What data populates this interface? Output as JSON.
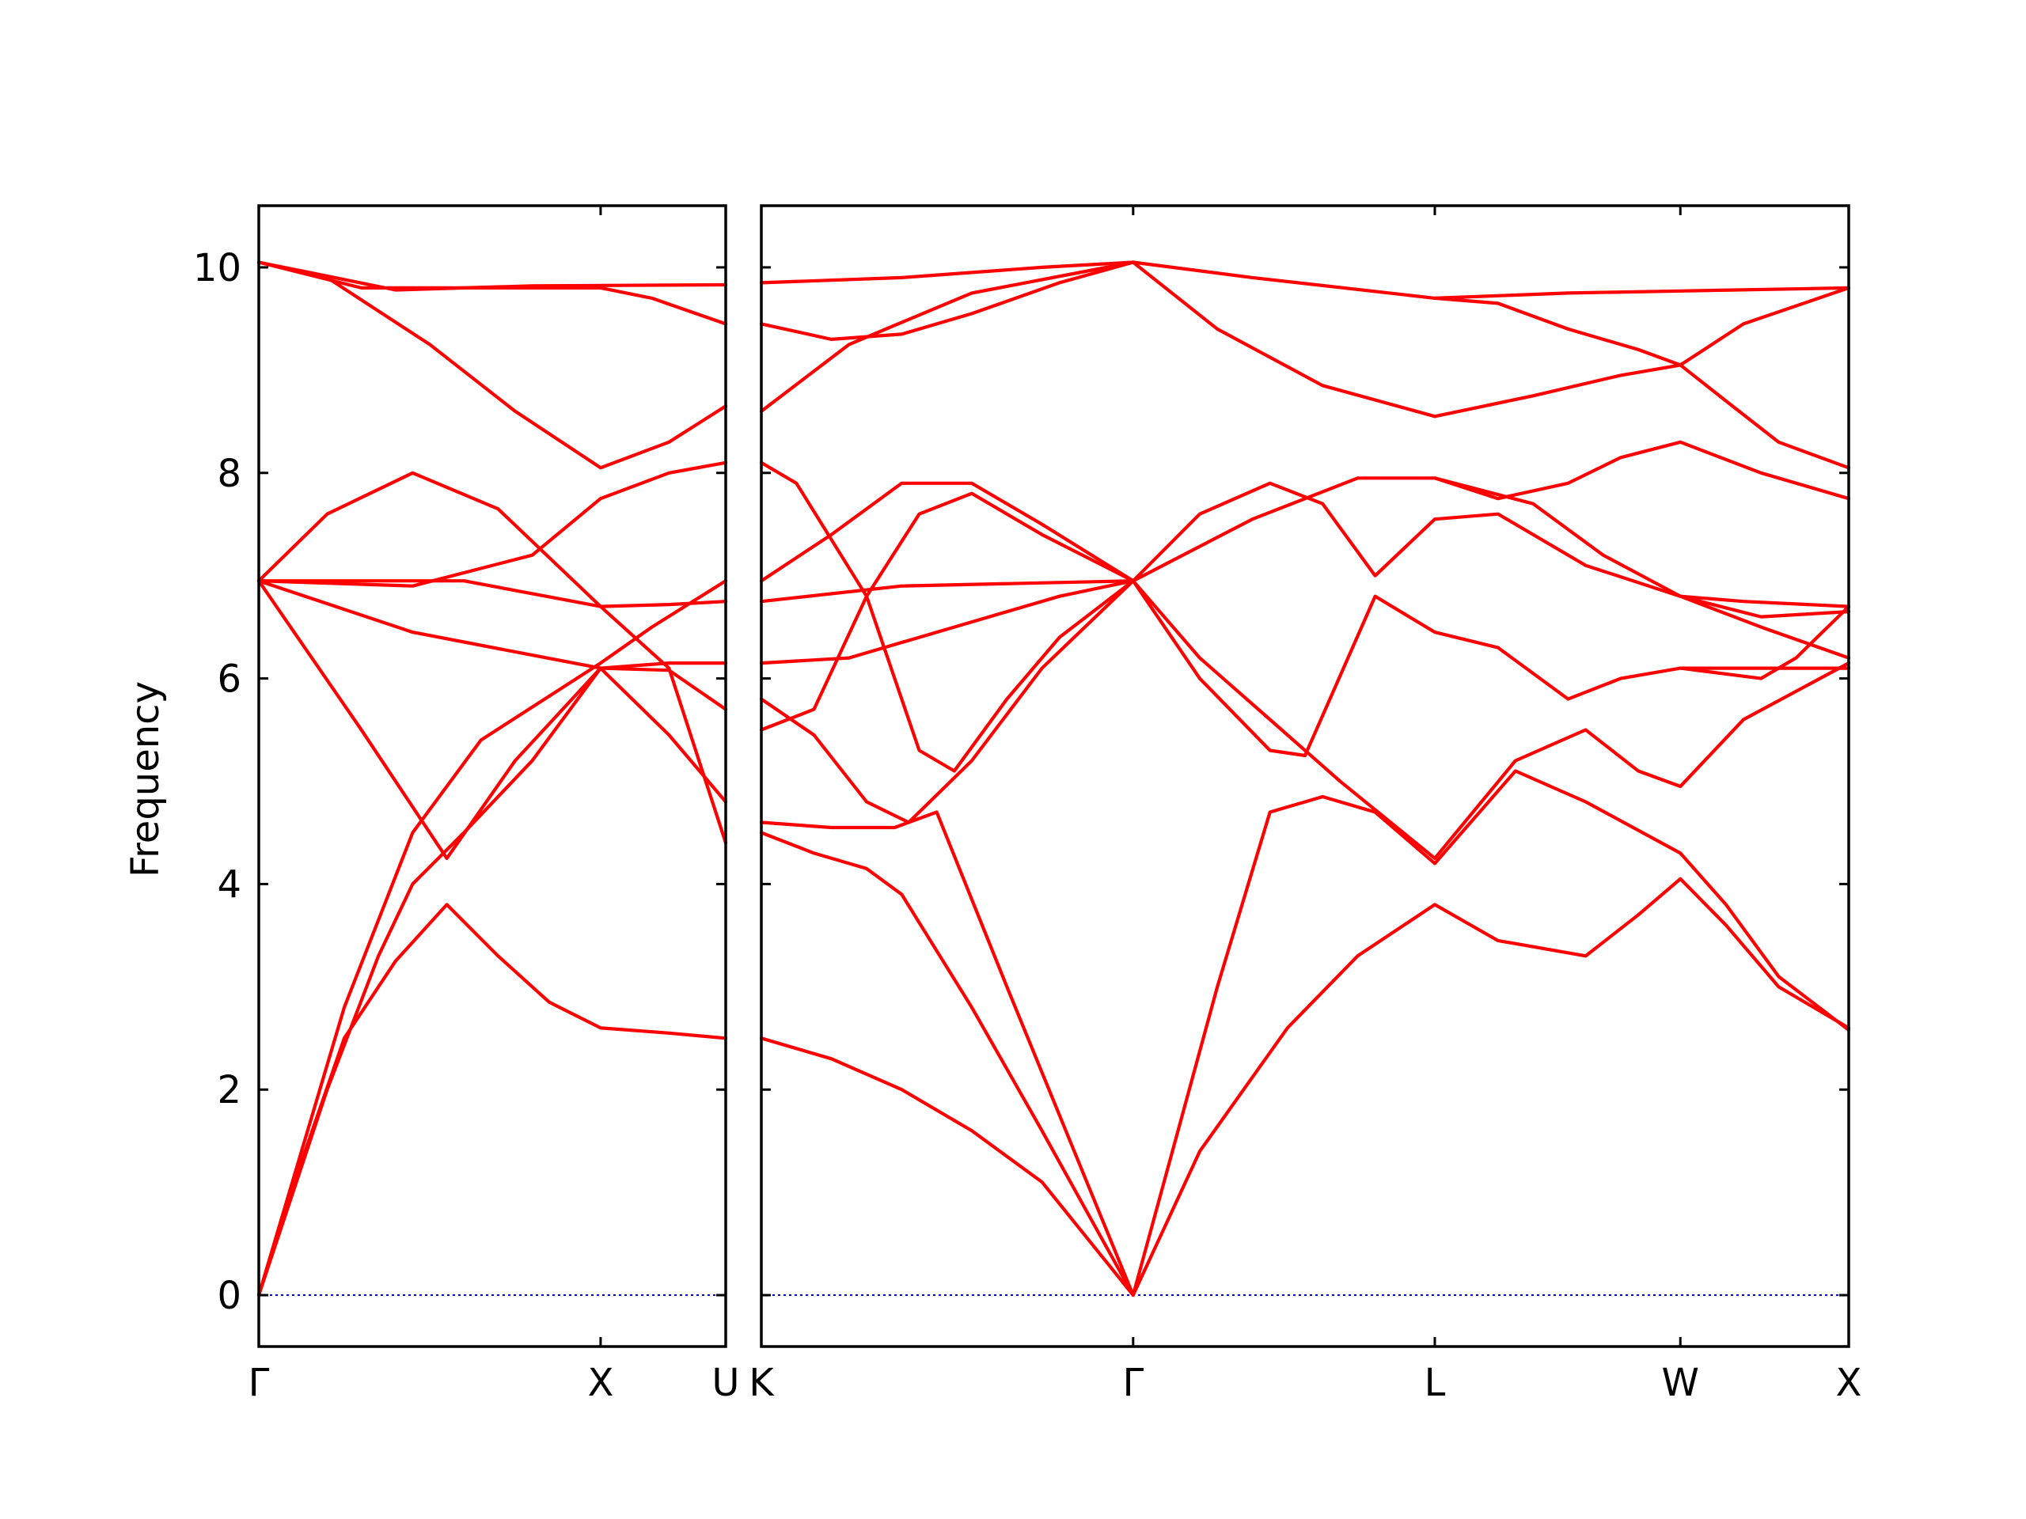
{
  "chart_data": {
    "type": "line",
    "ylabel": "Frequency",
    "ylim": [
      -0.5,
      10.6
    ],
    "yticks": [
      0,
      2,
      4,
      6,
      8,
      10
    ],
    "colors": {
      "bands": "#ff0000",
      "zero_line": "#0000cc",
      "frame": "#000000"
    },
    "grid": false,
    "panels": [
      {
        "xlim": [
          0,
          1.366
        ],
        "xticks": [
          {
            "x": 0,
            "label": "Γ"
          },
          {
            "x": 1.0,
            "label": "X"
          },
          {
            "x": 1.366,
            "label": "U"
          }
        ],
        "bands": [
          [
            [
              0,
              0
            ],
            [
              0.12,
              1.25
            ],
            [
              0.25,
              2.5
            ],
            [
              0.4,
              3.25
            ],
            [
              0.55,
              3.8
            ],
            [
              0.7,
              3.3
            ],
            [
              0.85,
              2.85
            ],
            [
              1.0,
              2.6
            ],
            [
              1.2,
              2.55
            ],
            [
              1.366,
              2.5
            ]
          ],
          [
            [
              0,
              0
            ],
            [
              0.2,
              2.0
            ],
            [
              0.35,
              3.3
            ],
            [
              0.45,
              4.0
            ],
            [
              0.6,
              4.5
            ],
            [
              0.8,
              5.2
            ],
            [
              1.0,
              6.1
            ],
            [
              1.2,
              6.08
            ],
            [
              1.366,
              5.7
            ]
          ],
          [
            [
              0,
              6.95
            ],
            [
              0.3,
              5.5
            ],
            [
              0.55,
              4.25
            ],
            [
              0.75,
              5.2
            ],
            [
              1.0,
              6.1
            ],
            [
              1.2,
              6.15
            ],
            [
              1.366,
              6.15
            ]
          ],
          [
            [
              0,
              0
            ],
            [
              0.25,
              2.8
            ],
            [
              0.45,
              4.5
            ],
            [
              0.65,
              5.4
            ],
            [
              1.0,
              6.15
            ],
            [
              1.15,
              6.5
            ],
            [
              1.366,
              6.95
            ]
          ],
          [
            [
              0,
              6.95
            ],
            [
              0.45,
              6.45
            ],
            [
              1.0,
              6.1
            ],
            [
              1.2,
              5.45
            ],
            [
              1.366,
              4.8
            ]
          ],
          [
            [
              0,
              6.95
            ],
            [
              0.45,
              6.9
            ],
            [
              0.8,
              7.2
            ],
            [
              1.0,
              7.75
            ],
            [
              1.2,
              8.0
            ],
            [
              1.366,
              8.1
            ]
          ],
          [
            [
              0,
              6.95
            ],
            [
              0.2,
              7.6
            ],
            [
              0.45,
              8.0
            ],
            [
              0.7,
              7.65
            ],
            [
              1.0,
              6.7
            ],
            [
              1.2,
              6.1
            ],
            [
              1.366,
              4.4
            ]
          ],
          [
            [
              0,
              6.95
            ],
            [
              0.6,
              6.95
            ],
            [
              1.0,
              6.7
            ],
            [
              1.2,
              6.72
            ],
            [
              1.366,
              6.75
            ]
          ],
          [
            [
              0,
              10.05
            ],
            [
              0.2,
              9.9
            ],
            [
              0.5,
              9.25
            ],
            [
              0.75,
              8.6
            ],
            [
              1.0,
              8.05
            ],
            [
              1.2,
              8.3
            ],
            [
              1.366,
              8.65
            ]
          ],
          [
            [
              0,
              10.05
            ],
            [
              0.3,
              9.8
            ],
            [
              0.6,
              9.8
            ],
            [
              1.0,
              9.8
            ],
            [
              1.15,
              9.7
            ],
            [
              1.366,
              9.45
            ]
          ],
          [
            [
              0,
              10.05
            ],
            [
              0.4,
              9.78
            ],
            [
              0.8,
              9.82
            ],
            [
              1.366,
              9.83
            ]
          ]
        ]
      },
      {
        "xlim": [
          0,
          3.1
        ],
        "xticks": [
          {
            "x": 0,
            "label": "K"
          },
          {
            "x": 1.06,
            "label": "Γ"
          },
          {
            "x": 1.92,
            "label": "L"
          },
          {
            "x": 2.62,
            "label": "W"
          },
          {
            "x": 3.1,
            "label": "X"
          }
        ],
        "bands": [
          [
            [
              0,
              2.5
            ],
            [
              0.2,
              2.3
            ],
            [
              0.4,
              2.0
            ],
            [
              0.6,
              1.6
            ],
            [
              0.8,
              1.1
            ],
            [
              1.06,
              0
            ]
          ],
          [
            [
              0,
              4.5
            ],
            [
              0.15,
              4.3
            ],
            [
              0.3,
              4.15
            ],
            [
              0.4,
              3.9
            ],
            [
              0.6,
              2.8
            ],
            [
              0.8,
              1.6
            ],
            [
              1.06,
              0
            ]
          ],
          [
            [
              0,
              4.6
            ],
            [
              0.2,
              4.55
            ],
            [
              0.38,
              4.55
            ],
            [
              0.5,
              4.7
            ],
            [
              0.7,
              3.0
            ],
            [
              1.06,
              0
            ]
          ],
          [
            [
              1.06,
              0
            ],
            [
              1.25,
              1.4
            ],
            [
              1.5,
              2.6
            ],
            [
              1.7,
              3.3
            ],
            [
              1.92,
              3.8
            ],
            [
              2.1,
              3.45
            ],
            [
              2.35,
              3.3
            ],
            [
              2.5,
              3.7
            ],
            [
              2.62,
              4.05
            ],
            [
              2.75,
              3.6
            ],
            [
              2.9,
              3.0
            ],
            [
              3.1,
              2.6
            ]
          ],
          [
            [
              1.06,
              0
            ],
            [
              1.3,
              3.0
            ],
            [
              1.45,
              4.7
            ],
            [
              1.6,
              4.85
            ],
            [
              1.75,
              4.7
            ],
            [
              1.92,
              4.2
            ],
            [
              2.15,
              5.1
            ],
            [
              2.35,
              4.8
            ],
            [
              2.62,
              4.3
            ],
            [
              2.75,
              3.8
            ],
            [
              2.9,
              3.1
            ],
            [
              3.1,
              2.58
            ]
          ],
          [
            [
              1.06,
              6.95
            ],
            [
              1.25,
              6.2
            ],
            [
              1.45,
              5.6
            ],
            [
              1.65,
              5.0
            ],
            [
              1.92,
              4.25
            ],
            [
              2.15,
              5.2
            ],
            [
              2.35,
              5.5
            ],
            [
              2.5,
              5.1
            ],
            [
              2.62,
              4.95
            ],
            [
              2.8,
              5.6
            ],
            [
              3.1,
              6.15
            ]
          ],
          [
            [
              1.06,
              6.95
            ],
            [
              1.25,
              6.0
            ],
            [
              1.45,
              5.3
            ],
            [
              1.55,
              5.25
            ],
            [
              1.75,
              6.8
            ],
            [
              1.92,
              6.45
            ],
            [
              2.1,
              6.3
            ],
            [
              2.3,
              5.8
            ],
            [
              2.45,
              6.0
            ],
            [
              2.62,
              6.1
            ],
            [
              2.8,
              6.1
            ],
            [
              3.1,
              6.1
            ]
          ],
          [
            [
              1.06,
              6.95
            ],
            [
              1.25,
              7.6
            ],
            [
              1.45,
              7.9
            ],
            [
              1.6,
              7.7
            ],
            [
              1.75,
              7.0
            ],
            [
              1.92,
              7.55
            ],
            [
              2.1,
              7.6
            ],
            [
              2.35,
              7.1
            ],
            [
              2.62,
              6.8
            ],
            [
              2.8,
              6.75
            ],
            [
              3.1,
              6.7
            ]
          ],
          [
            [
              0,
              6.75
            ],
            [
              0.4,
              6.9
            ],
            [
              1.06,
              6.95
            ],
            [
              1.4,
              7.55
            ],
            [
              1.7,
              7.95
            ],
            [
              1.92,
              7.95
            ],
            [
              2.2,
              7.7
            ],
            [
              2.4,
              7.2
            ],
            [
              2.62,
              6.8
            ],
            [
              2.85,
              6.5
            ],
            [
              3.1,
              6.2
            ]
          ],
          [
            [
              1.92,
              8.55
            ],
            [
              2.2,
              8.75
            ],
            [
              2.45,
              8.95
            ],
            [
              2.62,
              9.05
            ],
            [
              2.75,
              8.7
            ],
            [
              2.9,
              8.3
            ],
            [
              3.1,
              8.05
            ]
          ],
          [
            [
              1.92,
              9.7
            ],
            [
              2.1,
              9.65
            ],
            [
              2.3,
              9.4
            ],
            [
              2.5,
              9.2
            ],
            [
              2.62,
              9.05
            ],
            [
              2.8,
              9.45
            ],
            [
              3.1,
              9.8
            ]
          ],
          [
            [
              1.06,
              10.05
            ],
            [
              1.3,
              9.4
            ],
            [
              1.6,
              8.85
            ],
            [
              1.92,
              8.55
            ]
          ],
          [
            [
              1.06,
              10.05
            ],
            [
              1.4,
              9.9
            ],
            [
              1.92,
              9.7
            ],
            [
              2.3,
              9.75
            ],
            [
              2.62,
              9.77
            ],
            [
              3.1,
              9.8
            ]
          ],
          [
            [
              0,
              9.45
            ],
            [
              0.2,
              9.3
            ],
            [
              0.4,
              9.35
            ],
            [
              0.6,
              9.55
            ],
            [
              0.85,
              9.85
            ],
            [
              1.06,
              10.05
            ]
          ],
          [
            [
              0,
              9.85
            ],
            [
              0.4,
              9.9
            ],
            [
              0.8,
              10.0
            ],
            [
              1.06,
              10.05
            ]
          ],
          [
            [
              0,
              8.6
            ],
            [
              0.25,
              9.25
            ],
            [
              0.6,
              9.75
            ],
            [
              1.06,
              10.05
            ]
          ],
          [
            [
              0,
              8.1
            ],
            [
              0.1,
              7.9
            ],
            [
              0.3,
              6.8
            ],
            [
              0.45,
              5.3
            ],
            [
              0.55,
              5.1
            ],
            [
              0.7,
              5.8
            ],
            [
              0.85,
              6.4
            ],
            [
              1.06,
              6.95
            ]
          ],
          [
            [
              0,
              6.95
            ],
            [
              0.2,
              7.4
            ],
            [
              0.4,
              7.9
            ],
            [
              0.6,
              7.9
            ],
            [
              0.8,
              7.5
            ],
            [
              1.06,
              6.95
            ]
          ],
          [
            [
              0,
              5.5
            ],
            [
              0.15,
              5.7
            ],
            [
              0.3,
              6.8
            ],
            [
              0.45,
              7.6
            ],
            [
              0.6,
              7.8
            ],
            [
              0.8,
              7.4
            ],
            [
              1.06,
              6.95
            ]
          ],
          [
            [
              0,
              6.15
            ],
            [
              0.25,
              6.2
            ],
            [
              0.45,
              6.4
            ],
            [
              0.65,
              6.6
            ],
            [
              0.85,
              6.8
            ],
            [
              1.06,
              6.95
            ]
          ],
          [
            [
              0,
              5.8
            ],
            [
              0.15,
              5.45
            ],
            [
              0.3,
              4.8
            ],
            [
              0.42,
              4.6
            ],
            [
              0.6,
              5.2
            ],
            [
              0.8,
              6.1
            ],
            [
              1.06,
              6.95
            ]
          ],
          [
            [
              2.62,
              8.3
            ],
            [
              2.85,
              8.0
            ],
            [
              3.1,
              7.75
            ]
          ],
          [
            [
              1.92,
              7.95
            ],
            [
              2.1,
              7.75
            ],
            [
              2.3,
              7.9
            ],
            [
              2.45,
              8.15
            ],
            [
              2.62,
              8.3
            ]
          ],
          [
            [
              2.62,
              6.1
            ],
            [
              2.85,
              6.0
            ],
            [
              2.95,
              6.2
            ],
            [
              3.1,
              6.7
            ]
          ],
          [
            [
              2.62,
              6.8
            ],
            [
              2.85,
              6.6
            ],
            [
              3.1,
              6.65
            ]
          ]
        ]
      }
    ]
  }
}
